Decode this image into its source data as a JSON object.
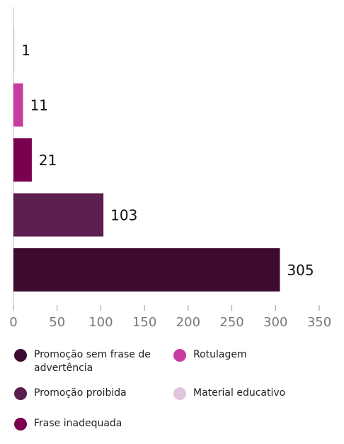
{
  "chart_data": {
    "type": "hbar",
    "categories": [
      "Promoção sem frase de advertência",
      "Promoção proibida",
      "Frase inadequada",
      "Rotulagem",
      "Material educativo"
    ],
    "values": [
      305,
      103,
      21,
      11,
      1
    ],
    "colors": [
      "#3d0a30",
      "#5c1e4e",
      "#7a0050",
      "#c83ca0",
      "#e2c4de"
    ],
    "xlim": [
      0,
      350
    ],
    "xticks": [
      0,
      50,
      100,
      150,
      200,
      250,
      300,
      350
    ]
  }
}
